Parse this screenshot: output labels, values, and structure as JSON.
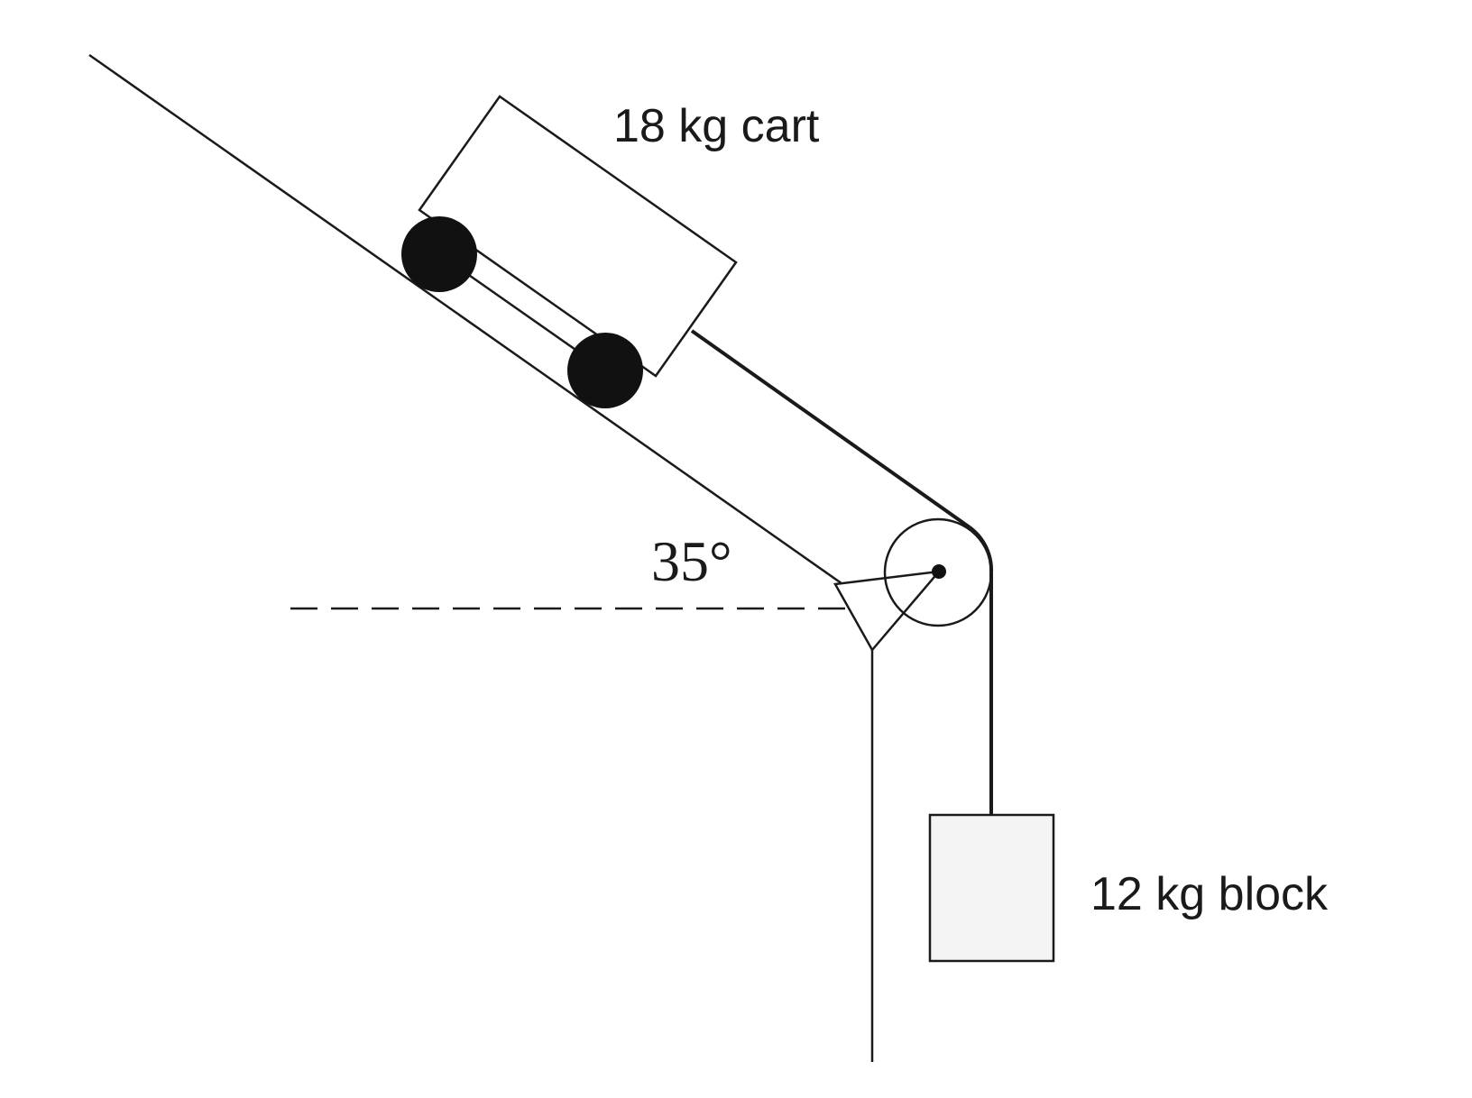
{
  "labels": {
    "cart": "18 kg cart",
    "block": "12 kg block",
    "angle": "35°"
  },
  "colors": {
    "ink": "#1a1a1a",
    "wheel": "#111111",
    "block_fill": "#f4f4f4",
    "background": "#ffffff"
  }
}
